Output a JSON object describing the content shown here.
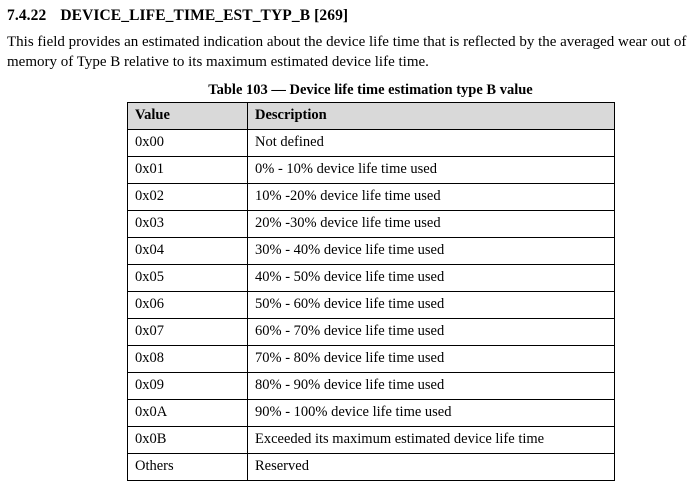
{
  "heading": {
    "number": "7.4.22",
    "title": "DEVICE_LIFE_TIME_EST_TYP_B [269]"
  },
  "paragraph": "This field provides an estimated indication about the device life time that is reflected by the averaged wear out of memory of Type B relative to its maximum estimated device life time.",
  "table": {
    "caption": "Table 103 — Device life time estimation type B value",
    "headers": [
      "Value",
      "Description"
    ],
    "rows": [
      [
        "0x00",
        "Not defined"
      ],
      [
        "0x01",
        "0% - 10% device life time used"
      ],
      [
        "0x02",
        "10% -20% device life time used"
      ],
      [
        "0x03",
        "20% -30% device life time used"
      ],
      [
        "0x04",
        "30% - 40% device life time used"
      ],
      [
        "0x05",
        "40% - 50% device life time used"
      ],
      [
        "0x06",
        "50% - 60% device life time used"
      ],
      [
        "0x07",
        "60% - 70% device life time used"
      ],
      [
        "0x08",
        "70% - 80% device life time used"
      ],
      [
        "0x09",
        "80% - 90% device life time used"
      ],
      [
        "0x0A",
        "90% - 100% device life time used"
      ],
      [
        "0x0B",
        "Exceeded its maximum estimated device life time"
      ],
      [
        "Others",
        "Reserved"
      ]
    ]
  }
}
